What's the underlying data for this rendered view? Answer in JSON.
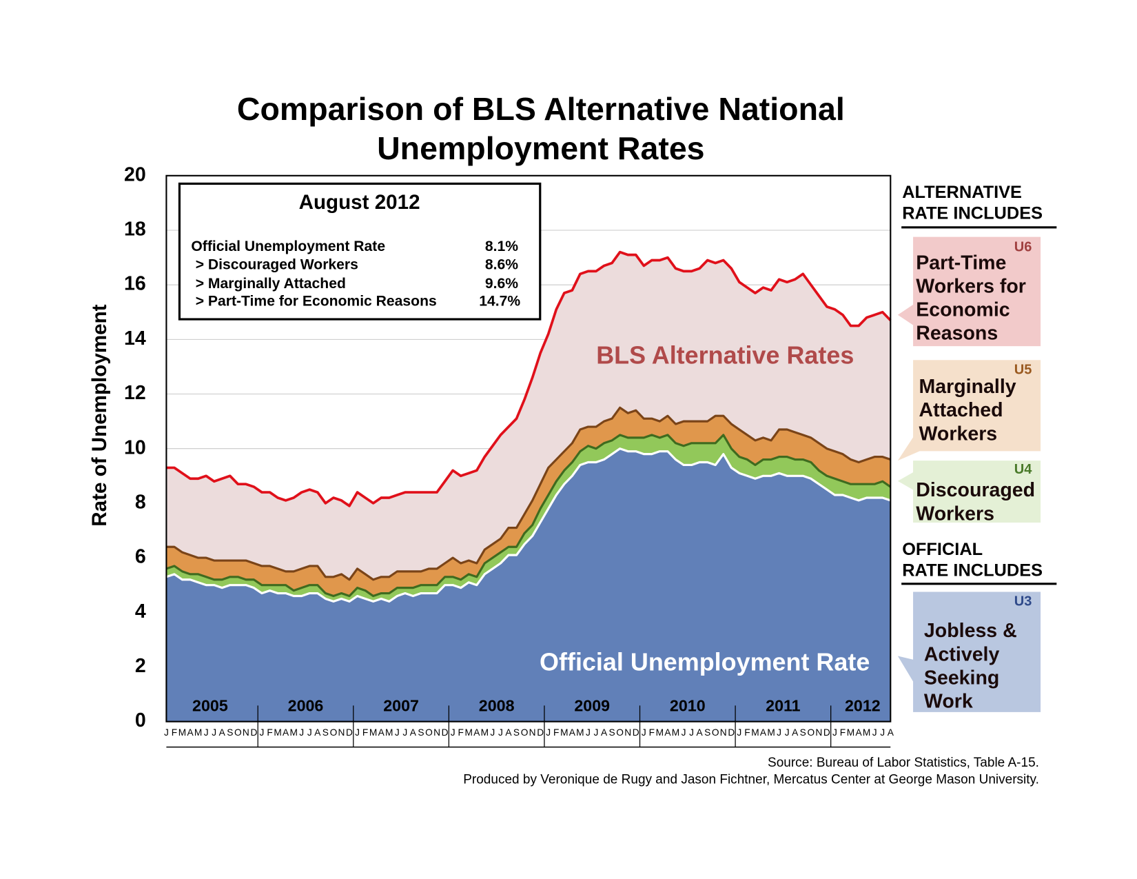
{
  "chart_data": {
    "type": "area",
    "title_lines": [
      "Comparison of BLS Alternative National",
      "Unemployment Rates"
    ],
    "y_label": "Rate of Unemployment",
    "ylim": [
      0,
      20
    ],
    "yticks": [
      0,
      2,
      4,
      6,
      8,
      10,
      12,
      14,
      16,
      18,
      20
    ],
    "grid": true,
    "years": [
      "2005",
      "2006",
      "2007",
      "2008",
      "2009",
      "2010",
      "2011",
      "2012"
    ],
    "categories": [
      "J",
      "F",
      "M",
      "A",
      "M",
      "J",
      "J",
      "A",
      "S",
      "O",
      "N",
      "D",
      "J",
      "F",
      "M",
      "A",
      "M",
      "J",
      "J",
      "A",
      "S",
      "O",
      "N",
      "D",
      "J",
      "F",
      "M",
      "A",
      "M",
      "J",
      "J",
      "A",
      "S",
      "O",
      "N",
      "D",
      "J",
      "F",
      "M",
      "A",
      "M",
      "J",
      "J",
      "A",
      "S",
      "O",
      "N",
      "D",
      "J",
      "F",
      "M",
      "A",
      "M",
      "J",
      "J",
      "A",
      "S",
      "O",
      "N",
      "D",
      "J",
      "F",
      "M",
      "A",
      "M",
      "J",
      "J",
      "A",
      "S",
      "O",
      "N",
      "D",
      "J",
      "F",
      "M",
      "A",
      "M",
      "J",
      "J",
      "A",
      "S",
      "O",
      "N",
      "D",
      "J",
      "F",
      "M",
      "A",
      "M",
      "J",
      "J",
      "A"
    ],
    "series": [
      {
        "name": "U3",
        "color": "#6180b8",
        "line_color": "#ffffff",
        "tag_color": "#2f4a8a",
        "box_color": "#b9c7e0",
        "label_lines": [
          "Jobless &",
          "Actively",
          "Seeking",
          "Work"
        ],
        "values": [
          5.3,
          5.4,
          5.2,
          5.2,
          5.1,
          5.0,
          5.0,
          4.9,
          5.0,
          5.0,
          5.0,
          4.9,
          4.7,
          4.8,
          4.7,
          4.7,
          4.6,
          4.6,
          4.7,
          4.7,
          4.5,
          4.4,
          4.5,
          4.4,
          4.6,
          4.5,
          4.4,
          4.5,
          4.4,
          4.6,
          4.7,
          4.6,
          4.7,
          4.7,
          4.7,
          5.0,
          5.0,
          4.9,
          5.1,
          5.0,
          5.4,
          5.6,
          5.8,
          6.1,
          6.1,
          6.5,
          6.8,
          7.3,
          7.8,
          8.3,
          8.7,
          9.0,
          9.4,
          9.5,
          9.5,
          9.6,
          9.8,
          10.0,
          9.9,
          9.9,
          9.8,
          9.8,
          9.9,
          9.9,
          9.6,
          9.4,
          9.4,
          9.5,
          9.5,
          9.4,
          9.8,
          9.3,
          9.1,
          9.0,
          8.9,
          9.0,
          9.0,
          9.1,
          9.0,
          9.0,
          9.0,
          8.9,
          8.7,
          8.5,
          8.3,
          8.3,
          8.2,
          8.1,
          8.2,
          8.2,
          8.2,
          8.1
        ]
      },
      {
        "name": "U4",
        "color": "#92c85a",
        "line_color": "#3f6b1f",
        "tag_color": "#4a7a2a",
        "box_color": "#e4f0d6",
        "label_lines": [
          "Discouraged",
          "Workers"
        ],
        "values": [
          5.6,
          5.7,
          5.5,
          5.4,
          5.4,
          5.3,
          5.2,
          5.2,
          5.3,
          5.3,
          5.2,
          5.2,
          5.0,
          5.0,
          5.0,
          5.0,
          4.8,
          4.9,
          5.0,
          5.0,
          4.7,
          4.6,
          4.7,
          4.6,
          4.9,
          4.8,
          4.6,
          4.7,
          4.7,
          4.9,
          4.9,
          4.9,
          5.0,
          5.0,
          5.0,
          5.3,
          5.3,
          5.2,
          5.4,
          5.3,
          5.8,
          6.0,
          6.2,
          6.4,
          6.4,
          6.9,
          7.2,
          7.8,
          8.3,
          8.8,
          9.2,
          9.5,
          9.9,
          10.1,
          10.0,
          10.2,
          10.3,
          10.5,
          10.4,
          10.4,
          10.4,
          10.5,
          10.4,
          10.5,
          10.2,
          10.1,
          10.2,
          10.2,
          10.2,
          10.2,
          10.5,
          10.0,
          9.7,
          9.6,
          9.4,
          9.6,
          9.6,
          9.7,
          9.7,
          9.6,
          9.6,
          9.5,
          9.2,
          9.0,
          8.9,
          8.8,
          8.7,
          8.7,
          8.7,
          8.7,
          8.8,
          8.6
        ]
      },
      {
        "name": "U5",
        "color": "#e0974c",
        "line_color": "#7a4418",
        "tag_color": "#9a5a20",
        "box_color": "#f5e0cb",
        "label_lines": [
          "Marginally",
          "Attached",
          "Workers"
        ],
        "values": [
          6.4,
          6.4,
          6.2,
          6.1,
          6.0,
          6.0,
          5.9,
          5.9,
          5.9,
          5.9,
          5.9,
          5.8,
          5.7,
          5.7,
          5.6,
          5.5,
          5.5,
          5.6,
          5.7,
          5.7,
          5.3,
          5.3,
          5.4,
          5.2,
          5.6,
          5.4,
          5.2,
          5.3,
          5.3,
          5.5,
          5.5,
          5.5,
          5.5,
          5.6,
          5.6,
          5.8,
          6.0,
          5.8,
          5.9,
          5.8,
          6.3,
          6.5,
          6.7,
          7.1,
          7.1,
          7.6,
          8.1,
          8.7,
          9.3,
          9.6,
          9.9,
          10.2,
          10.7,
          10.8,
          10.8,
          11.0,
          11.1,
          11.5,
          11.3,
          11.4,
          11.1,
          11.1,
          11.0,
          11.2,
          10.9,
          11.0,
          11.0,
          11.0,
          11.0,
          11.2,
          11.2,
          10.9,
          10.7,
          10.5,
          10.3,
          10.4,
          10.3,
          10.7,
          10.7,
          10.6,
          10.5,
          10.4,
          10.2,
          10.0,
          9.9,
          9.8,
          9.6,
          9.5,
          9.6,
          9.7,
          9.7,
          9.6
        ]
      },
      {
        "name": "U6",
        "color": "#ecdcdc",
        "line_color": "#e0101a",
        "tag_color": "#a04040",
        "box_color": "#f2caca",
        "label_lines": [
          "Part-Time",
          "Workers for",
          "Economic",
          "Reasons"
        ],
        "values": [
          9.3,
          9.3,
          9.1,
          8.9,
          8.9,
          9.0,
          8.8,
          8.9,
          9.0,
          8.7,
          8.7,
          8.6,
          8.4,
          8.4,
          8.2,
          8.1,
          8.2,
          8.4,
          8.5,
          8.4,
          8.0,
          8.2,
          8.1,
          7.9,
          8.4,
          8.2,
          8.0,
          8.2,
          8.2,
          8.3,
          8.4,
          8.4,
          8.4,
          8.4,
          8.4,
          8.8,
          9.2,
          9.0,
          9.1,
          9.2,
          9.7,
          10.1,
          10.5,
          10.8,
          11.1,
          11.8,
          12.6,
          13.5,
          14.2,
          15.1,
          15.7,
          15.8,
          16.4,
          16.5,
          16.5,
          16.7,
          16.8,
          17.2,
          17.1,
          17.1,
          16.7,
          16.9,
          16.9,
          17.0,
          16.6,
          16.5,
          16.5,
          16.6,
          16.9,
          16.8,
          16.9,
          16.6,
          16.1,
          15.9,
          15.7,
          15.9,
          15.8,
          16.2,
          16.1,
          16.2,
          16.4,
          16.0,
          15.6,
          15.2,
          15.1,
          14.9,
          14.5,
          14.5,
          14.8,
          14.9,
          15.0,
          14.7
        ]
      }
    ],
    "alt_header": [
      "ALTERNATIVE",
      "RATE INCLUDES"
    ],
    "official_header": [
      "OFFICIAL",
      "RATE INCLUDES"
    ],
    "area_labels": {
      "alternative": "BLS Alternative Rates",
      "official": "Official Unemployment Rate"
    },
    "summary": {
      "title": "August 2012",
      "rows": [
        {
          "label": "Official Unemployment Rate",
          "value": "8.1%"
        },
        {
          "label": "> Discouraged Workers",
          "value": "8.6%"
        },
        {
          "label": "> Marginally Attached",
          "value": "9.6%"
        },
        {
          "label": "> Part-Time for Economic Reasons",
          "value": "14.7%"
        }
      ]
    },
    "source_lines": [
      "Source: Bureau of Labor Statistics, Table A-15.",
      "Produced by Veronique de Rugy and Jason Fichtner, Mercatus Center at George Mason University."
    ]
  }
}
